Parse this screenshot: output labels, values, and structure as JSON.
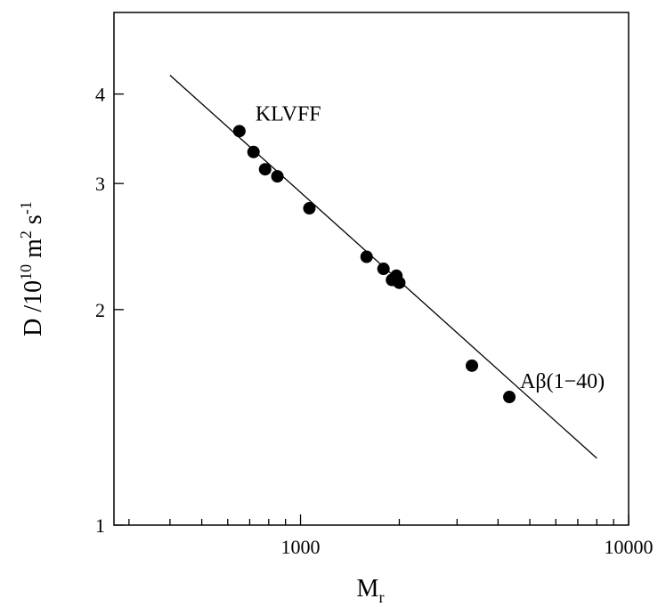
{
  "chart_data": {
    "type": "scatter",
    "title": "",
    "xlabel": {
      "base": "M",
      "sub": "r"
    },
    "ylabel": {
      "prefix": "D /10",
      "exp1": "10",
      "mid": " m",
      "exp2": "2",
      "mid2": " s",
      "exp3": "-1"
    },
    "x_scale": "log",
    "y_scale": "log",
    "xlim": [
      270,
      10000
    ],
    "ylim": [
      1,
      5.2
    ],
    "x_ticks": [
      {
        "value": 1000,
        "label": "1000"
      },
      {
        "value": 10000,
        "label": "10000"
      }
    ],
    "y_ticks": [
      {
        "value": 1,
        "label": "1"
      },
      {
        "value": 2,
        "label": "2"
      },
      {
        "value": 3,
        "label": "3"
      },
      {
        "value": 4,
        "label": "4"
      }
    ],
    "grid": false,
    "points": [
      {
        "x": 651,
        "y": 3.55
      },
      {
        "x": 719,
        "y": 3.32
      },
      {
        "x": 780,
        "y": 3.14
      },
      {
        "x": 850,
        "y": 3.07
      },
      {
        "x": 1064,
        "y": 2.77
      },
      {
        "x": 1590,
        "y": 2.37
      },
      {
        "x": 1790,
        "y": 2.28
      },
      {
        "x": 1900,
        "y": 2.2
      },
      {
        "x": 1960,
        "y": 2.23
      },
      {
        "x": 2000,
        "y": 2.18
      },
      {
        "x": 3330,
        "y": 1.67
      },
      {
        "x": 4330,
        "y": 1.51
      }
    ],
    "fit_line": {
      "x": [
        400,
        8000
      ],
      "y": [
        4.25,
        1.24
      ]
    },
    "annotations": [
      {
        "text": "KLVFF",
        "x": 651,
        "y": 3.55
      },
      {
        "text": "Aβ(1−40)",
        "x": 4330,
        "y": 1.51
      }
    ]
  }
}
